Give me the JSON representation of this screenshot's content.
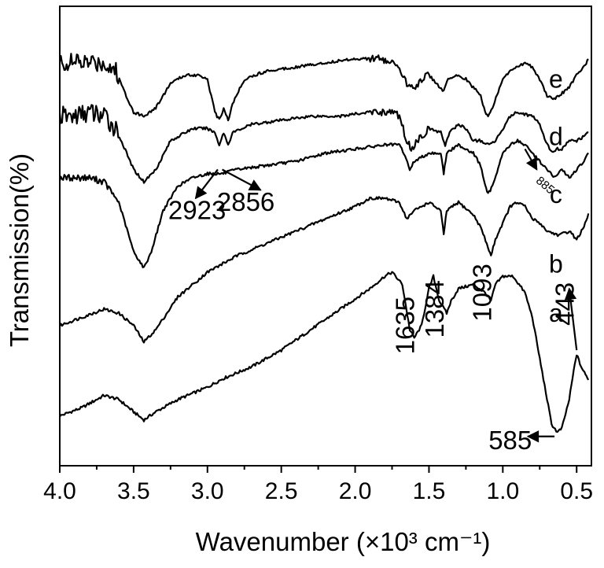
{
  "chart_data": {
    "type": "line",
    "xlabel": "Wavenumber (×10³ cm⁻¹)",
    "ylabel": "Transmission(%)",
    "xlim": [
      4.0,
      0.4
    ],
    "x_reversed": true,
    "x_ticks": [
      4.0,
      3.5,
      3.0,
      2.5,
      2.0,
      1.5,
      1.0,
      0.5
    ],
    "x_tick_labels": [
      "4.0",
      "3.5",
      "3.0",
      "2.5",
      "2.0",
      "1.5",
      "1.0",
      "0.5"
    ],
    "y_unit": "arbitrary (offset traces)",
    "ylim": [
      0,
      100
    ],
    "grid": false,
    "legend": "none",
    "series": [
      {
        "name": "a",
        "label_at": [
          0.64,
          31
        ],
        "points": [
          [
            4.0,
            6
          ],
          [
            3.85,
            8
          ],
          [
            3.7,
            11
          ],
          [
            3.6,
            10
          ],
          [
            3.5,
            7
          ],
          [
            3.43,
            5
          ],
          [
            3.35,
            7
          ],
          [
            3.2,
            10
          ],
          [
            3.0,
            13
          ],
          [
            2.9,
            15
          ],
          [
            2.7,
            18
          ],
          [
            2.5,
            22
          ],
          [
            2.3,
            27
          ],
          [
            2.1,
            32
          ],
          [
            1.9,
            37
          ],
          [
            1.8,
            40
          ],
          [
            1.75,
            41
          ],
          [
            1.68,
            38
          ],
          [
            1.63,
            27
          ],
          [
            1.6,
            25
          ],
          [
            1.55,
            28
          ],
          [
            1.5,
            37
          ],
          [
            1.47,
            40
          ],
          [
            1.43,
            34
          ],
          [
            1.38,
            31
          ],
          [
            1.35,
            34
          ],
          [
            1.3,
            37
          ],
          [
            1.2,
            38
          ],
          [
            1.12,
            36
          ],
          [
            1.08,
            34
          ],
          [
            1.05,
            38
          ],
          [
            1.0,
            40
          ],
          [
            0.93,
            40
          ],
          [
            0.85,
            36
          ],
          [
            0.8,
            30
          ],
          [
            0.75,
            20
          ],
          [
            0.7,
            10
          ],
          [
            0.67,
            4
          ],
          [
            0.63,
            2
          ],
          [
            0.6,
            3
          ],
          [
            0.55,
            10
          ],
          [
            0.52,
            17
          ],
          [
            0.5,
            21
          ],
          [
            0.47,
            18
          ],
          [
            0.44,
            16
          ],
          [
            0.42,
            15
          ]
        ]
      },
      {
        "name": "b",
        "label_at": [
          0.64,
          43
        ],
        "points": [
          [
            4.0,
            28
          ],
          [
            3.85,
            30
          ],
          [
            3.7,
            32
          ],
          [
            3.6,
            31
          ],
          [
            3.5,
            28
          ],
          [
            3.43,
            24
          ],
          [
            3.35,
            27
          ],
          [
            3.2,
            35
          ],
          [
            3.0,
            41
          ],
          [
            2.8,
            45
          ],
          [
            2.6,
            48
          ],
          [
            2.4,
            51
          ],
          [
            2.2,
            54
          ],
          [
            2.0,
            57
          ],
          [
            1.9,
            59
          ],
          [
            1.8,
            59
          ],
          [
            1.7,
            58
          ],
          [
            1.65,
            54
          ],
          [
            1.6,
            56
          ],
          [
            1.5,
            58
          ],
          [
            1.42,
            56
          ],
          [
            1.4,
            50
          ],
          [
            1.38,
            56
          ],
          [
            1.3,
            58
          ],
          [
            1.2,
            55
          ],
          [
            1.15,
            52
          ],
          [
            1.1,
            47
          ],
          [
            1.08,
            45
          ],
          [
            1.05,
            49
          ],
          [
            1.0,
            53
          ],
          [
            0.95,
            57
          ],
          [
            0.9,
            58
          ],
          [
            0.85,
            57
          ],
          [
            0.8,
            54
          ],
          [
            0.75,
            53
          ],
          [
            0.7,
            51
          ],
          [
            0.62,
            50
          ],
          [
            0.55,
            51
          ],
          [
            0.5,
            49
          ],
          [
            0.45,
            52
          ],
          [
            0.42,
            55
          ]
        ]
      },
      {
        "name": "c",
        "label_at": [
          0.64,
          60
        ],
        "points": [
          [
            4.0,
            64
          ],
          [
            3.9,
            64
          ],
          [
            3.8,
            64
          ],
          [
            3.7,
            63
          ],
          [
            3.6,
            58
          ],
          [
            3.5,
            46
          ],
          [
            3.43,
            42
          ],
          [
            3.38,
            46
          ],
          [
            3.3,
            56
          ],
          [
            3.2,
            62
          ],
          [
            3.1,
            64
          ],
          [
            3.0,
            65
          ],
          [
            2.9,
            65
          ],
          [
            2.8,
            66
          ],
          [
            2.6,
            67
          ],
          [
            2.4,
            68
          ],
          [
            2.2,
            70
          ],
          [
            2.0,
            71
          ],
          [
            1.8,
            72
          ],
          [
            1.7,
            72
          ],
          [
            1.67,
            70
          ],
          [
            1.63,
            66
          ],
          [
            1.6,
            68
          ],
          [
            1.5,
            70
          ],
          [
            1.42,
            70
          ],
          [
            1.4,
            65
          ],
          [
            1.38,
            70
          ],
          [
            1.3,
            72
          ],
          [
            1.2,
            70
          ],
          [
            1.15,
            67
          ],
          [
            1.12,
            62
          ],
          [
            1.1,
            60
          ],
          [
            1.07,
            62
          ],
          [
            1.0,
            70
          ],
          [
            0.95,
            72
          ],
          [
            0.9,
            73
          ],
          [
            0.85,
            72
          ],
          [
            0.8,
            70
          ],
          [
            0.75,
            68
          ],
          [
            0.7,
            66
          ],
          [
            0.65,
            64
          ],
          [
            0.6,
            66
          ],
          [
            0.55,
            64
          ],
          [
            0.5,
            66
          ],
          [
            0.45,
            68
          ],
          [
            0.42,
            70
          ]
        ]
      },
      {
        "name": "d",
        "label_at": [
          0.64,
          74
        ],
        "points": [
          [
            4.0,
            79
          ],
          [
            3.9,
            79
          ],
          [
            3.8,
            80
          ],
          [
            3.7,
            79
          ],
          [
            3.62,
            76
          ],
          [
            3.5,
            66
          ],
          [
            3.43,
            63
          ],
          [
            3.35,
            66
          ],
          [
            3.25,
            73
          ],
          [
            3.1,
            76
          ],
          [
            3.0,
            76
          ],
          [
            2.95,
            75
          ],
          [
            2.92,
            72
          ],
          [
            2.89,
            75
          ],
          [
            2.86,
            72
          ],
          [
            2.83,
            75
          ],
          [
            2.7,
            77
          ],
          [
            2.5,
            78
          ],
          [
            2.3,
            79
          ],
          [
            2.1,
            79
          ],
          [
            1.9,
            80
          ],
          [
            1.75,
            80
          ],
          [
            1.7,
            79
          ],
          [
            1.65,
            73
          ],
          [
            1.62,
            71
          ],
          [
            1.58,
            73
          ],
          [
            1.5,
            76
          ],
          [
            1.42,
            75
          ],
          [
            1.39,
            72
          ],
          [
            1.36,
            75
          ],
          [
            1.3,
            77
          ],
          [
            1.25,
            76
          ],
          [
            1.2,
            73
          ],
          [
            1.15,
            73
          ],
          [
            1.1,
            72
          ],
          [
            1.05,
            73
          ],
          [
            1.0,
            76
          ],
          [
            0.95,
            79
          ],
          [
            0.9,
            80
          ],
          [
            0.8,
            79
          ],
          [
            0.75,
            77
          ],
          [
            0.7,
            72
          ],
          [
            0.66,
            70
          ],
          [
            0.63,
            71
          ],
          [
            0.6,
            71
          ],
          [
            0.55,
            73
          ],
          [
            0.5,
            73
          ],
          [
            0.45,
            74
          ],
          [
            0.42,
            75
          ]
        ]
      },
      {
        "name": "e",
        "label_at": [
          0.64,
          88
        ],
        "points": [
          [
            4.0,
            92
          ],
          [
            3.9,
            92
          ],
          [
            3.8,
            92
          ],
          [
            3.7,
            92
          ],
          [
            3.62,
            90
          ],
          [
            3.55,
            84
          ],
          [
            3.5,
            80
          ],
          [
            3.43,
            79
          ],
          [
            3.35,
            81
          ],
          [
            3.25,
            87
          ],
          [
            3.15,
            89
          ],
          [
            3.05,
            89
          ],
          [
            3.0,
            88
          ],
          [
            2.95,
            80
          ],
          [
            2.92,
            78
          ],
          [
            2.89,
            81
          ],
          [
            2.86,
            78
          ],
          [
            2.83,
            82
          ],
          [
            2.75,
            88
          ],
          [
            2.6,
            90
          ],
          [
            2.4,
            91
          ],
          [
            2.2,
            92
          ],
          [
            2.0,
            93
          ],
          [
            1.85,
            93
          ],
          [
            1.75,
            92
          ],
          [
            1.7,
            90
          ],
          [
            1.65,
            87
          ],
          [
            1.6,
            86
          ],
          [
            1.55,
            88
          ],
          [
            1.5,
            89
          ],
          [
            1.45,
            87
          ],
          [
            1.4,
            85
          ],
          [
            1.37,
            88
          ],
          [
            1.3,
            89
          ],
          [
            1.25,
            88
          ],
          [
            1.2,
            86
          ],
          [
            1.15,
            84
          ],
          [
            1.12,
            80
          ],
          [
            1.1,
            79
          ],
          [
            1.07,
            81
          ],
          [
            1.0,
            88
          ],
          [
            0.95,
            90
          ],
          [
            0.9,
            91
          ],
          [
            0.85,
            92
          ],
          [
            0.8,
            91
          ],
          [
            0.75,
            88
          ],
          [
            0.7,
            84
          ],
          [
            0.66,
            83
          ],
          [
            0.62,
            84
          ],
          [
            0.55,
            86
          ],
          [
            0.5,
            89
          ],
          [
            0.45,
            91
          ],
          [
            0.42,
            93
          ]
        ]
      }
    ],
    "annotations": [
      {
        "text": "2923",
        "x": 3.07,
        "y": 56
      },
      {
        "text": "2856",
        "x": 2.74,
        "y": 58
      },
      {
        "text": "1635",
        "x": 1.6,
        "y": 21,
        "rotate": -90
      },
      {
        "text": "1384",
        "x": 1.4,
        "y": 25,
        "rotate": -90
      },
      {
        "text": "1093",
        "x": 1.08,
        "y": 29,
        "rotate": -90
      },
      {
        "text": "443",
        "x": 0.52,
        "y": 28,
        "rotate": -90
      },
      {
        "text": "585",
        "x": 0.95,
        "y": 0
      },
      {
        "text": "885",
        "x": 0.78,
        "y": 63,
        "small": true,
        "rotate": 40
      }
    ],
    "arrows": [
      {
        "from": [
          2.93,
          66
        ],
        "to": [
          3.08,
          59
        ]
      },
      {
        "from": [
          2.9,
          66
        ],
        "to": [
          2.64,
          61
        ]
      },
      {
        "from": [
          0.65,
          1
        ],
        "to": [
          0.83,
          1
        ]
      },
      {
        "from": [
          0.5,
          22
        ],
        "to": [
          0.55,
          37
        ]
      },
      {
        "from": [
          0.85,
          71
        ],
        "to": [
          0.77,
          66
        ]
      }
    ]
  }
}
